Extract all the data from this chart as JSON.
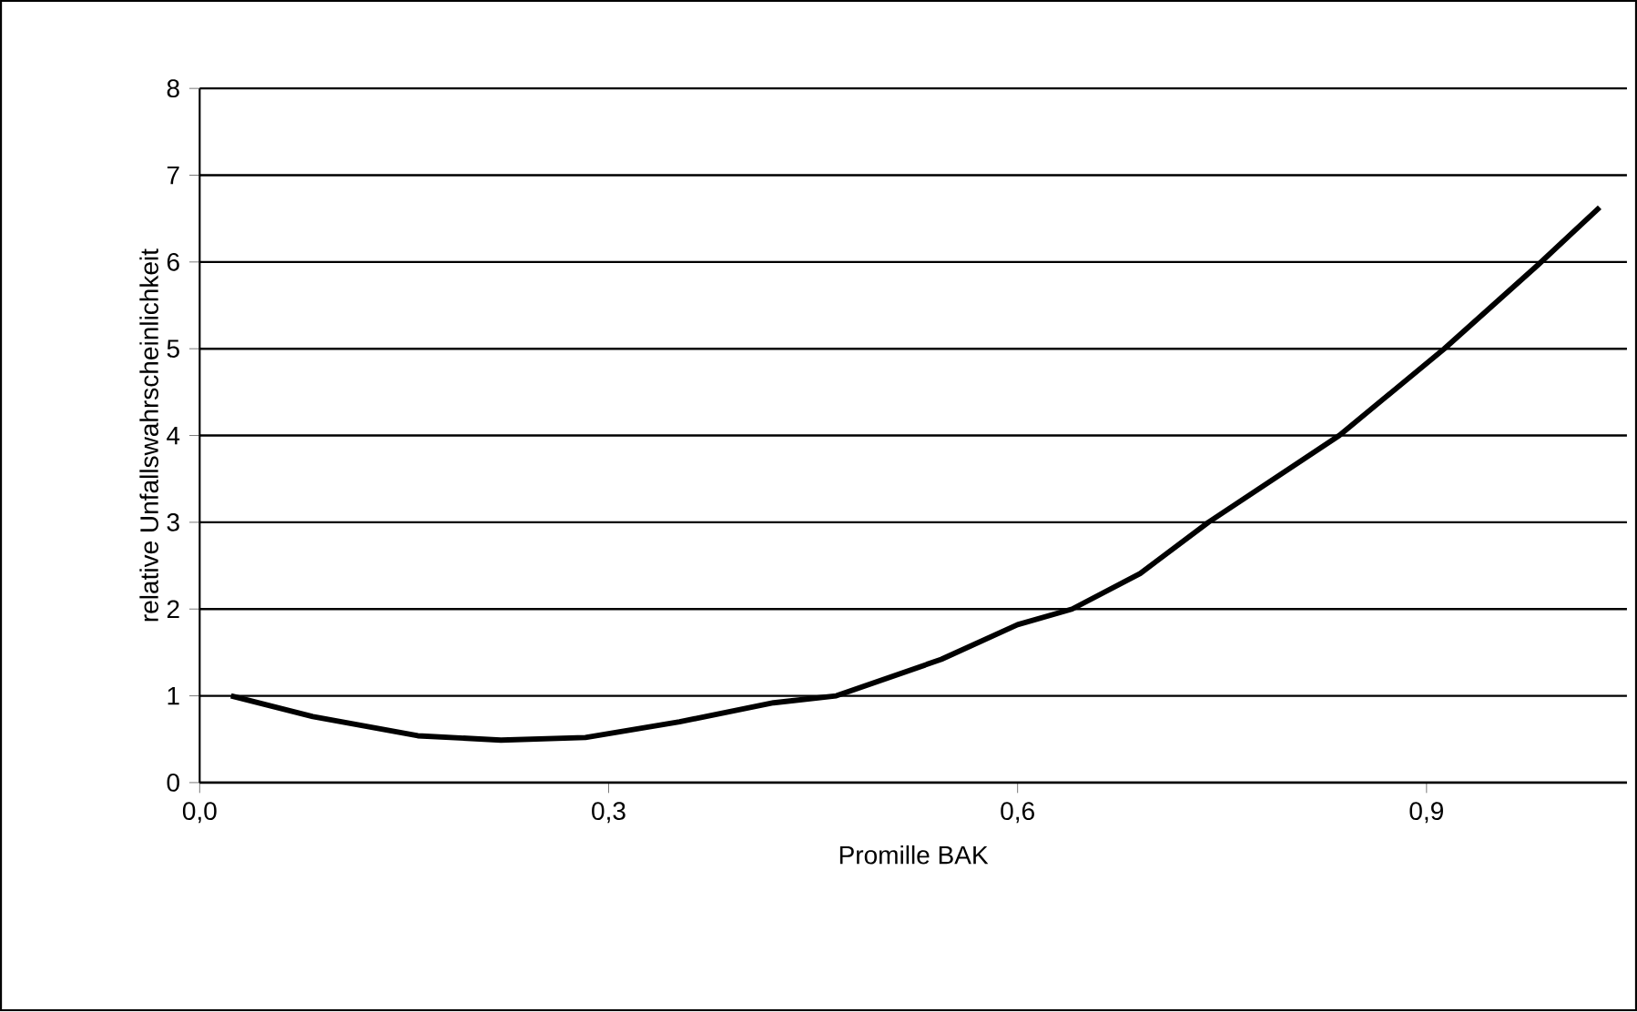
{
  "chart_data": {
    "type": "line",
    "xlabel": "Promille BAK",
    "ylabel": "relative Unfallswahrscheinlichkeit",
    "x": [
      0.023,
      0.083,
      0.16,
      0.221,
      0.283,
      0.352,
      0.421,
      0.467,
      0.544,
      0.6,
      0.64,
      0.69,
      0.74,
      0.836,
      0.913,
      0.982,
      1.027
    ],
    "series": [
      {
        "color": "#000000",
        "values": [
          1.0,
          0.76,
          0.54,
          0.49,
          0.52,
          0.7,
          0.92,
          1.0,
          1.42,
          1.82,
          2.0,
          2.41,
          3.0,
          4.0,
          5.0,
          5.97,
          6.63
        ]
      }
    ],
    "xlim": [
      0,
      1.047
    ],
    "ylim": [
      0,
      8
    ],
    "xticks": [
      {
        "value": 0,
        "label": "0,0"
      },
      {
        "value": 0.3,
        "label": "0,3"
      },
      {
        "value": 0.6,
        "label": "0,6"
      },
      {
        "value": 0.9,
        "label": "0,9"
      }
    ],
    "yticks": [
      0,
      1,
      2,
      3,
      4,
      5,
      6,
      7,
      8
    ],
    "grid": "y",
    "marker": "none",
    "line_style": "solid"
  }
}
